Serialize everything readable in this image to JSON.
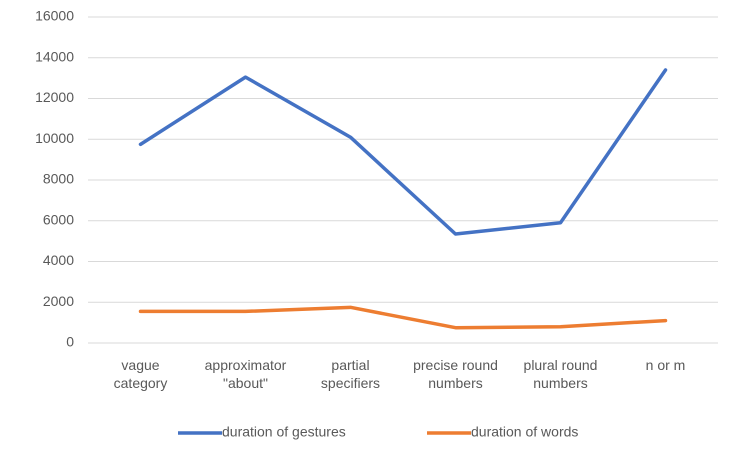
{
  "chart_data": {
    "type": "line",
    "categories": [
      "vague\ncategory",
      "approximator\n\"about\"",
      "partial\nspecifiers",
      "precise round\nnumbers",
      "plural round\nnumbers",
      "n or m"
    ],
    "series": [
      {
        "name": "duration of gestures",
        "color": "#4472c4",
        "values": [
          9750,
          13050,
          10100,
          5350,
          5900,
          13400
        ]
      },
      {
        "name": "duration of words",
        "color": "#ed7d31",
        "values": [
          1550,
          1550,
          1750,
          750,
          800,
          1100
        ]
      }
    ],
    "ylim": [
      0,
      16000
    ],
    "yticks": [
      0,
      2000,
      4000,
      6000,
      8000,
      10000,
      12000,
      14000,
      16000
    ],
    "grid": true,
    "legend": "bottom"
  }
}
